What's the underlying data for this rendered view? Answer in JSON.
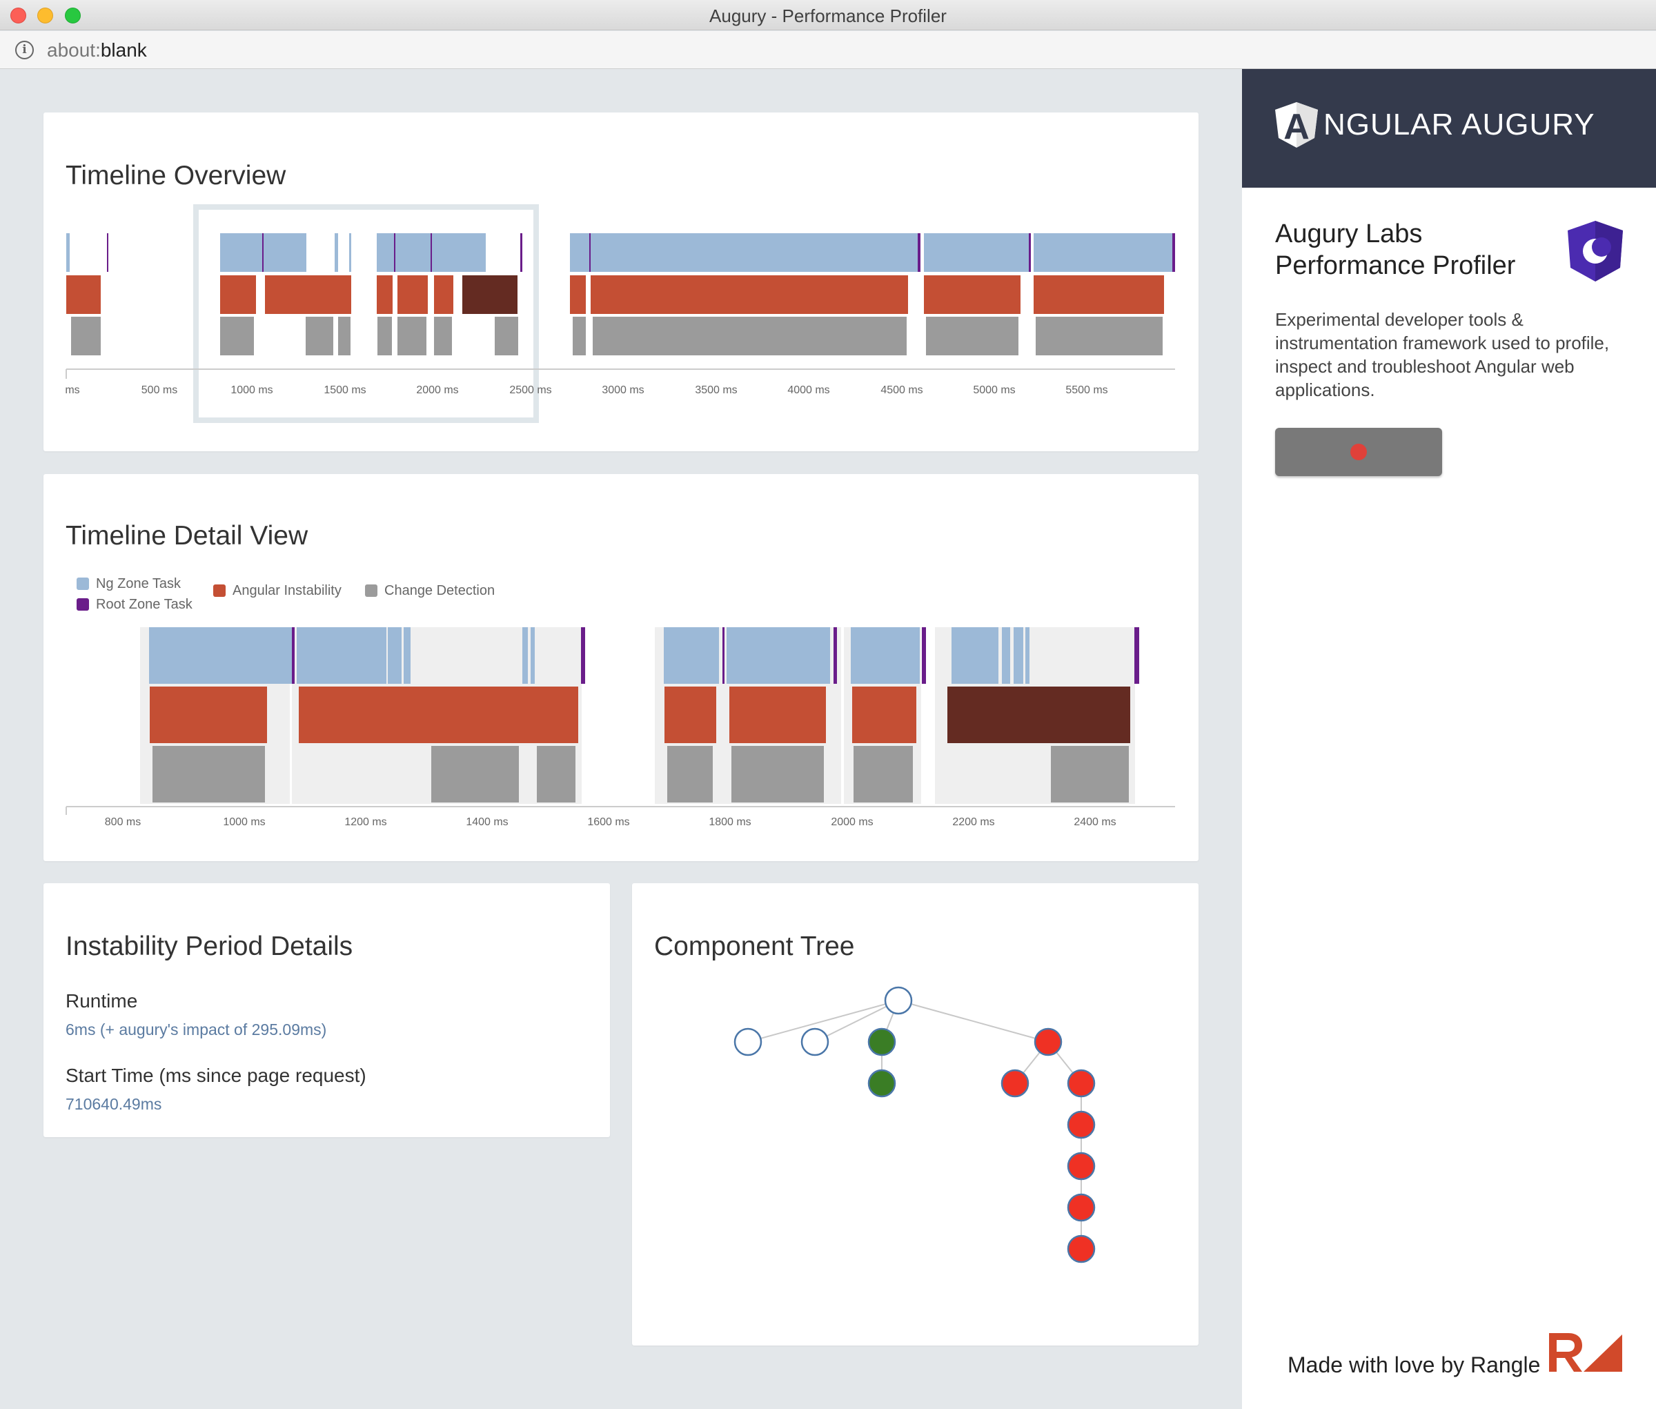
{
  "window": {
    "title": "Augury - Performance Profiler"
  },
  "address": {
    "scheme": "about:",
    "path": "blank"
  },
  "overview": {
    "title": "Timeline Overview",
    "axis_labels": [
      "ms",
      "500 ms",
      "1000 ms",
      "1500 ms",
      "2000 ms",
      "2500 ms",
      "3000 ms",
      "3500 ms",
      "4000 ms",
      "4500 ms",
      "5000 ms",
      "5500 ms"
    ]
  },
  "detail": {
    "title": "Timeline Detail View",
    "legend": {
      "ng_zone": "Ng Zone Task",
      "root_zone": "Root Zone Task",
      "instability": "Angular Instability",
      "change_detection": "Change Detection"
    },
    "axis_labels": [
      "800 ms",
      "1000 ms",
      "1200 ms",
      "1400 ms",
      "1600 ms",
      "1800 ms",
      "2000 ms",
      "2200 ms",
      "2400 ms"
    ]
  },
  "instability": {
    "title": "Instability Period Details",
    "runtime_label": "Runtime",
    "runtime_value": "6ms (+ augury's impact of 295.09ms)",
    "start_label": "Start Time (ms since page request)",
    "start_value": "710640.49ms"
  },
  "tree": {
    "title": "Component Tree"
  },
  "sidebar": {
    "brand": "NGULAR AUGURY",
    "brand_initial": "A",
    "lab_title": "Augury Labs Performance Profiler",
    "description": "Experimental developer tools & instrumentation framework used to profile, inspect and troubleshoot Angular web applications.",
    "footer": "Made with love by Rangle"
  },
  "colors": {
    "ng_zone": "#9cb9d7",
    "root_zone": "#6a1d8a",
    "instability": "#c44f34",
    "instability_selected": "#642b22",
    "change_detection": "#9b9b9b",
    "node_green": "#3a7d25",
    "node_red": "#ef3124"
  }
}
